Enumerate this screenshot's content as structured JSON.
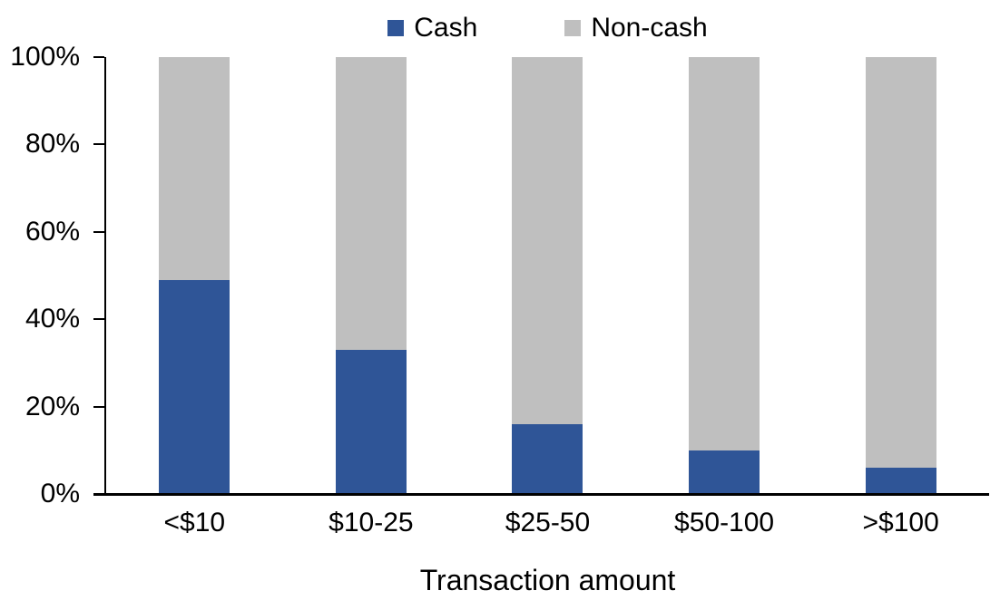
{
  "chart_data": {
    "type": "bar",
    "stacked": true,
    "stacked_to_100_percent": true,
    "categories": [
      "<$10",
      "$10-25",
      "$25-50",
      "$50-100",
      ">$100"
    ],
    "series": [
      {
        "name": "Cash",
        "color": "#2F5597",
        "values": [
          49,
          33,
          16,
          10,
          6
        ]
      },
      {
        "name": "Non-cash",
        "color": "#BFBFBF",
        "values": [
          51,
          67,
          84,
          90,
          94
        ]
      }
    ],
    "xlabel": "Transaction amount",
    "ylim": [
      0,
      100
    ],
    "yticks": [
      {
        "value": 0,
        "label": "0%"
      },
      {
        "value": 20,
        "label": "20%"
      },
      {
        "value": 40,
        "label": "40%"
      },
      {
        "value": 60,
        "label": "60%"
      },
      {
        "value": 80,
        "label": "80%"
      },
      {
        "value": 100,
        "label": "100%"
      }
    ],
    "grid": false,
    "legend_position": "top",
    "axis_color": "#000000",
    "background_color": "#FFFFFF"
  }
}
